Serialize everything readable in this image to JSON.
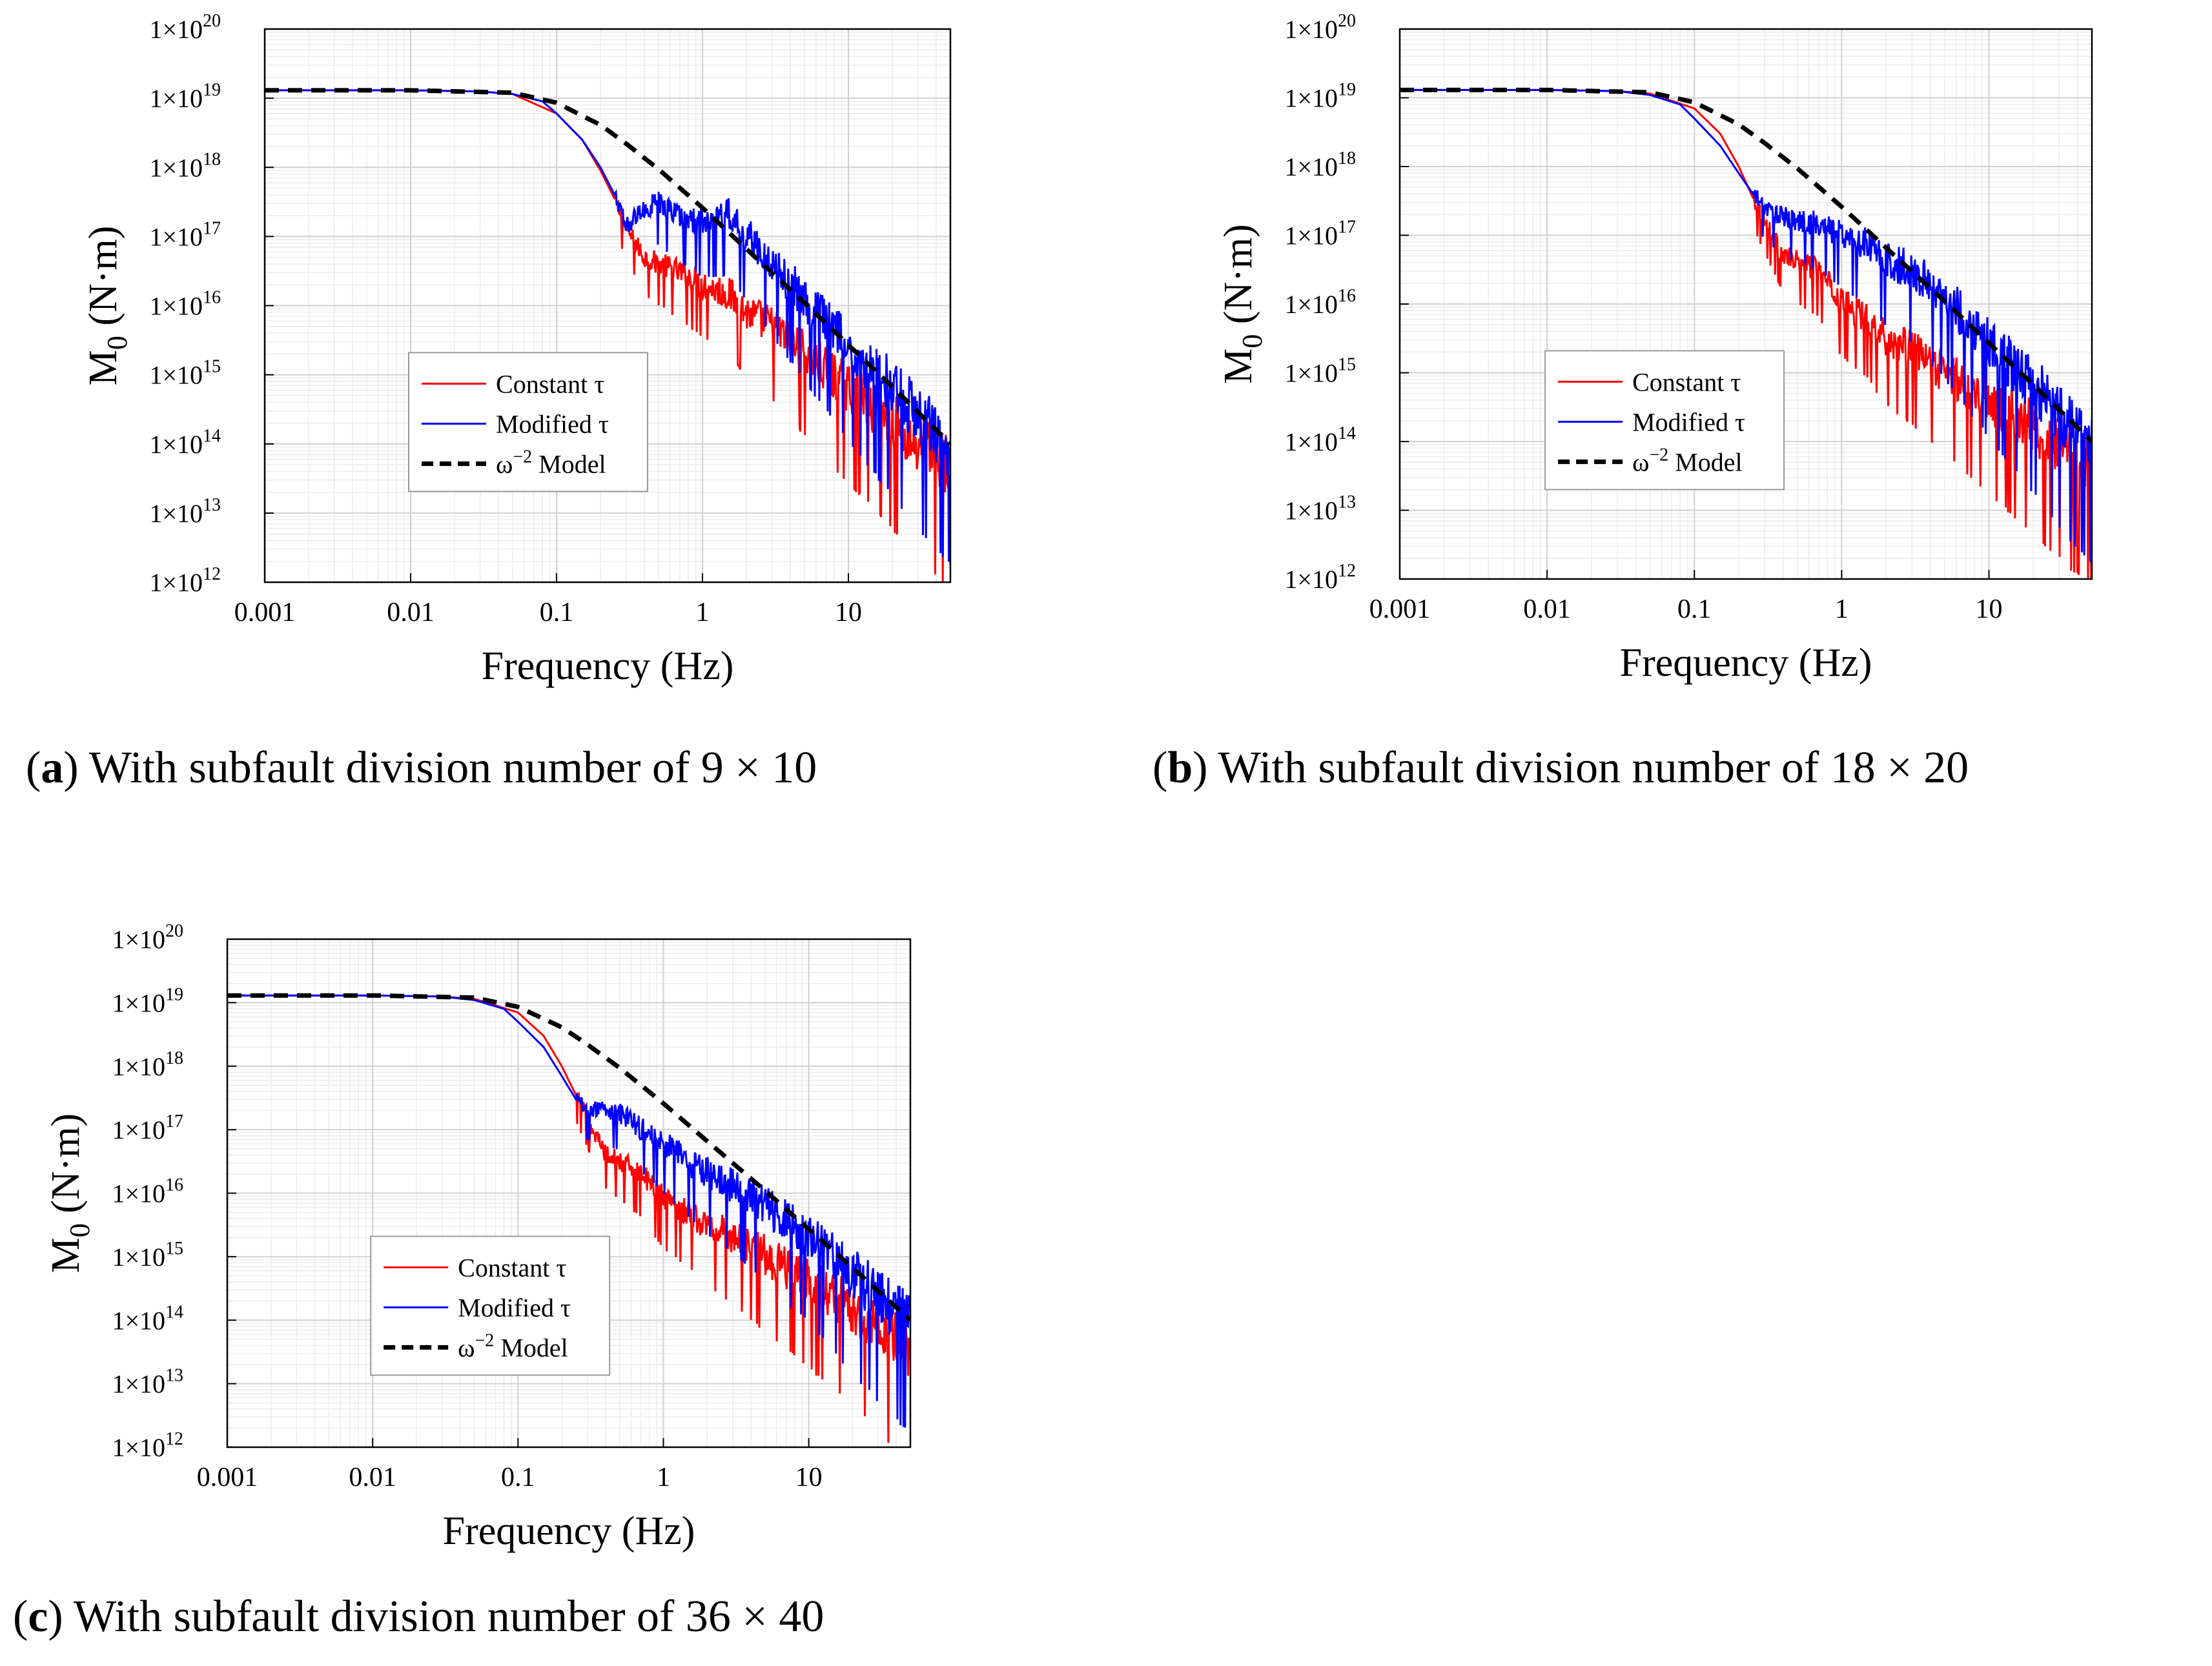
{
  "colors": {
    "constant": "#ff0000",
    "modified": "#0000ff",
    "model": "#000000",
    "grid": "#d0d0d0",
    "minor_grid": "#ececec"
  },
  "captions": [
    {
      "letter": "a",
      "text": "With subfault division number of 9 × 10"
    },
    {
      "letter": "b",
      "text": "With subfault division number of 18 × 20"
    },
    {
      "letter": "c",
      "text": "With subfault division number of 36 × 40"
    }
  ],
  "chart_data": [
    {
      "type": "line",
      "panel": "a",
      "xlabel": "Frequency (Hz)",
      "ylabel": "M0 (N·m)",
      "x_scale": "log",
      "y_scale": "log",
      "xlim": [
        0.001,
        50
      ],
      "ylim": [
        1000000000000.0,
        1e+20
      ],
      "xticks": [
        "0.001",
        "0.01",
        "0.1",
        "1",
        "10"
      ],
      "yticks": [
        "1×10^12",
        "1×10^13",
        "1×10^14",
        "1×10^15",
        "1×10^16",
        "1×10^17",
        "1×10^18",
        "1×10^19",
        "1×10^20"
      ],
      "grid": true,
      "legend_position": "center-left",
      "series": [
        {
          "name": "Constant τ",
          "x": [
            0.001,
            0.01,
            0.03,
            0.05,
            0.1,
            0.15,
            0.2,
            0.25,
            0.3,
            0.4,
            0.5,
            0.7,
            1,
            1.5,
            2,
            3,
            5,
            10,
            20,
            50
          ],
          "y": [
            1.3e+19,
            1.3e+19,
            1.25e+19,
            1.15e+19,
            6e+18,
            2.5e+18,
            9e+17,
            3.5e+17,
            1.3e+17,
            5e+16,
            4e+16,
            3e+16,
            2e+16,
            1.5e+16,
            8000000000000000.0,
            5000000000000000.0,
            2000000000000000.0,
            600000000000000.0,
            200000000000000.0,
            40000000000000.0
          ]
        },
        {
          "name": "Modified τ",
          "x": [
            0.001,
            0.01,
            0.03,
            0.05,
            0.08,
            0.1,
            0.15,
            0.2,
            0.25,
            0.3,
            0.4,
            0.5,
            0.7,
            1,
            1.5,
            2,
            3,
            5,
            10,
            20,
            50
          ],
          "y": [
            1.3e+19,
            1.3e+19,
            1.25e+19,
            1.15e+19,
            9e+18,
            6e+18,
            2.5e+18,
            1e+18,
            4e+17,
            1.4e+17,
            2.5e+17,
            3e+17,
            2e+17,
            1.5e+17,
            2e+17,
            1e+17,
            4e+16,
            1.2e+16,
            2500000000000000.0,
            600000000000000.0,
            80000000000000.0
          ]
        },
        {
          "name": "ω⁻² Model",
          "x": [
            0.001,
            0.01,
            0.05,
            0.1,
            0.2,
            0.3,
            0.5,
            1,
            2,
            5,
            10,
            20,
            50
          ],
          "y": [
            1.3e+19,
            1.3e+19,
            1.2e+19,
            8.6e+18,
            4.1e+18,
            2.2e+18,
            9.4e+17,
            2.6e+17,
            6.6e+16,
            1.1e+16,
            2700000000000000.0,
            670000000000000.0,
            100000000000000.0
          ]
        }
      ]
    },
    {
      "type": "line",
      "panel": "b",
      "xlabel": "Frequency (Hz)",
      "ylabel": "M0 (N·m)",
      "x_scale": "log",
      "y_scale": "log",
      "xlim": [
        0.001,
        50
      ],
      "ylim": [
        1000000000000.0,
        1e+20
      ],
      "xticks": [
        "0.001",
        "0.01",
        "0.1",
        "1",
        "10"
      ],
      "yticks": [
        "1×10^12",
        "1×10^13",
        "1×10^14",
        "1×10^15",
        "1×10^16",
        "1×10^17",
        "1×10^18",
        "1×10^19",
        "1×10^20"
      ],
      "grid": true,
      "legend_position": "center-left",
      "series": [
        {
          "name": "Constant τ",
          "x": [
            0.001,
            0.01,
            0.03,
            0.05,
            0.1,
            0.15,
            0.2,
            0.25,
            0.3,
            0.4,
            0.5,
            0.7,
            1,
            1.5,
            2,
            3,
            5,
            10,
            20,
            50
          ],
          "y": [
            1.3e+19,
            1.3e+19,
            1.25e+19,
            1.15e+19,
            7e+18,
            3e+18,
            1e+18,
            3.5e+17,
            1.6e+17,
            5e+16,
            4e+16,
            3e+16,
            1e+16,
            6000000000000000.0,
            3000000000000000.0,
            2000000000000000.0,
            1000000000000000.0,
            400000000000000.0,
            150000000000000.0,
            40000000000000.0
          ]
        },
        {
          "name": "Modified τ",
          "x": [
            0.001,
            0.01,
            0.03,
            0.05,
            0.08,
            0.1,
            0.15,
            0.2,
            0.25,
            0.3,
            0.4,
            0.5,
            0.7,
            1,
            1.5,
            2,
            3,
            5,
            10,
            20,
            50
          ],
          "y": [
            1.3e+19,
            1.3e+19,
            1.25e+19,
            1.1e+19,
            8e+18,
            5e+18,
            2e+18,
            8e+17,
            4e+17,
            2.5e+17,
            1.8e+17,
            1.6e+17,
            1.4e+17,
            1e+17,
            7e+16,
            4e+16,
            3e+16,
            1.2e+16,
            2500000000000000.0,
            600000000000000.0,
            80000000000000.0
          ]
        },
        {
          "name": "ω⁻² Model",
          "x": [
            0.001,
            0.01,
            0.05,
            0.1,
            0.2,
            0.3,
            0.5,
            1,
            2,
            5,
            10,
            20,
            50
          ],
          "y": [
            1.3e+19,
            1.3e+19,
            1.2e+19,
            8.6e+18,
            4.1e+18,
            2.2e+18,
            9.4e+17,
            2.6e+17,
            6.6e+16,
            1.1e+16,
            2700000000000000.0,
            670000000000000.0,
            100000000000000.0
          ]
        }
      ]
    },
    {
      "type": "line",
      "panel": "c",
      "xlabel": "Frequency (Hz)",
      "ylabel": "M0 (N·m)",
      "x_scale": "log",
      "y_scale": "log",
      "xlim": [
        0.001,
        50
      ],
      "ylim": [
        1000000000000.0,
        1e+20
      ],
      "xticks": [
        "0.001",
        "0.01",
        "0.1",
        "1",
        "10"
      ],
      "yticks": [
        "1×10^12",
        "1×10^13",
        "1×10^14",
        "1×10^15",
        "1×10^16",
        "1×10^17",
        "1×10^18",
        "1×10^19",
        "1×10^20"
      ],
      "grid": true,
      "legend_position": "center-left",
      "series": [
        {
          "name": "Constant τ",
          "x": [
            0.001,
            0.01,
            0.03,
            0.05,
            0.1,
            0.15,
            0.2,
            0.25,
            0.3,
            0.4,
            0.5,
            0.7,
            1,
            1.5,
            2,
            3,
            5,
            10,
            20,
            50
          ],
          "y": [
            1.3e+19,
            1.3e+19,
            1.25e+19,
            1.15e+19,
            7e+18,
            3e+18,
            1e+18,
            3.5e+17,
            1.5e+17,
            4e+16,
            3e+16,
            2e+16,
            8000000000000000.0,
            5000000000000000.0,
            3000000000000000.0,
            2000000000000000.0,
            1000000000000000.0,
            400000000000000.0,
            150000000000000.0,
            30000000000000.0
          ]
        },
        {
          "name": "Modified τ",
          "x": [
            0.001,
            0.01,
            0.03,
            0.05,
            0.08,
            0.1,
            0.15,
            0.2,
            0.25,
            0.3,
            0.4,
            0.5,
            0.7,
            1,
            1.5,
            2,
            3,
            5,
            10,
            20,
            50
          ],
          "y": [
            1.3e+19,
            1.3e+19,
            1.25e+19,
            1.1e+19,
            8e+18,
            5e+18,
            2e+18,
            7e+17,
            3e+17,
            2e+17,
            2e+17,
            1.8e+17,
            1e+17,
            6e+16,
            3e+16,
            2e+16,
            1.2e+16,
            6000000000000000.0,
            2000000000000000.0,
            500000000000000.0,
            80000000000000.0
          ]
        },
        {
          "name": "ω⁻² Model",
          "x": [
            0.001,
            0.01,
            0.05,
            0.1,
            0.2,
            0.3,
            0.5,
            1,
            2,
            5,
            10,
            20,
            50
          ],
          "y": [
            1.3e+19,
            1.3e+19,
            1.2e+19,
            8.6e+18,
            4.1e+18,
            2.2e+18,
            9.4e+17,
            2.6e+17,
            6.6e+16,
            1.1e+16,
            2700000000000000.0,
            670000000000000.0,
            100000000000000.0
          ]
        }
      ]
    }
  ]
}
